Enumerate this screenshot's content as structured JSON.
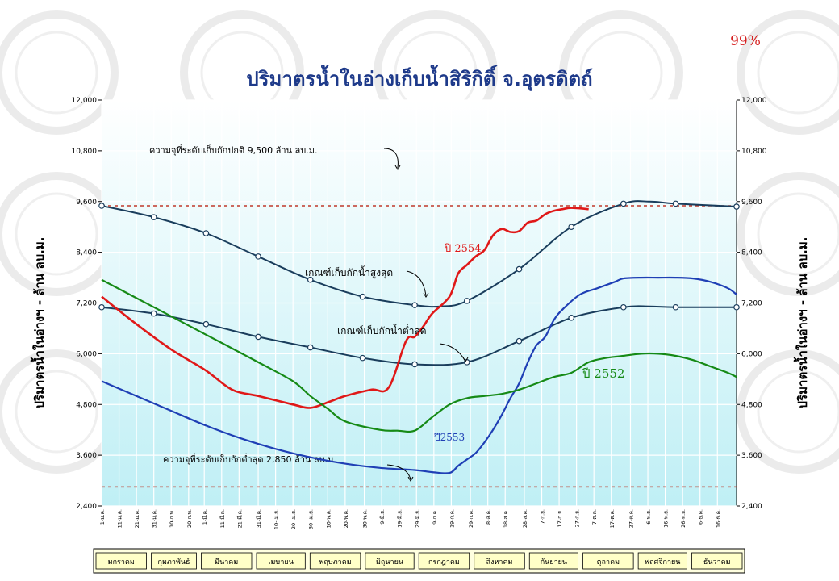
{
  "percent_label": "99%",
  "percent_color": "#d62020",
  "chart_data": {
    "type": "line",
    "title": "ปริมาตรน้ำในอ่างเก็บน้ำสิริกิติ์ จ.อุตรดิตถ์",
    "ylabel_left": "ปริมาตรน้ำในอ่างฯ - ล้าน ลบ.ม.",
    "ylabel_right": "ปริมาตรน้ำในอ่างฯ - ล้าน ลบ.ม.",
    "ylim": [
      2400,
      12000
    ],
    "yticks": [
      2400,
      3600,
      4800,
      6000,
      7200,
      8400,
      9600,
      10800,
      12000
    ],
    "ytick_labels": [
      "2,400",
      "3,600",
      "4,800",
      "6,000",
      "7,200",
      "8,400",
      "9,600",
      "10,800",
      "12,000"
    ],
    "xlim": [
      0,
      365
    ],
    "grid": true,
    "xtick_days": [
      0,
      10,
      20,
      30,
      40,
      50,
      59,
      69,
      79,
      90,
      100,
      110,
      120,
      130,
      140,
      151,
      161,
      171,
      181,
      191,
      201,
      212,
      222,
      232,
      243,
      253,
      263,
      273,
      283,
      293,
      304,
      314,
      324,
      334,
      344,
      354
    ],
    "xtick_labels": [
      "1-ม.ค.",
      "11-ม.ค.",
      "21-ม.ค.",
      "31-ม.ค.",
      "10-ก.พ.",
      "20-ก.พ.",
      "1-มี.ค.",
      "11-มี.ค.",
      "21-มี.ค.",
      "31-มี.ค.",
      "10-เม.ย.",
      "20-เม.ย.",
      "30-เม.ย.",
      "10-พ.ค.",
      "20-พ.ค.",
      "30-พ.ค.",
      "9-มิ.ย.",
      "19-มิ.ย.",
      "29-มิ.ย.",
      "9-ก.ค.",
      "19-ก.ค.",
      "29-ก.ค.",
      "8-ส.ค.",
      "18-ส.ค.",
      "28-ส.ค.",
      "7-ก.ย.",
      "17-ก.ย.",
      "27-ก.ย.",
      "7-ต.ค.",
      "17-ต.ค.",
      "27-ต.ค.",
      "6-พ.ย.",
      "16-พ.ย.",
      "26-พ.ย.",
      "6-ธ.ค.",
      "16-ธ.ค."
    ],
    "months": [
      "มกราคม",
      "กุมภาพันธ์",
      "มีนาคม",
      "เมษายน",
      "พฤษภาคม",
      "มิถุนายน",
      "กรกฎาคม",
      "สิงหาคม",
      "กันยายน",
      "ตุลาคม",
      "พฤศจิกายน",
      "ธันวาคม"
    ],
    "month_start_days": [
      0,
      31,
      59,
      90,
      120,
      151,
      181,
      212,
      243,
      273,
      304,
      334,
      365
    ],
    "ref_lines": [
      {
        "value": 9500,
        "label": "ความจุที่ระดับเก็บกักปกติ 9,500 ล้าน ลบ.ม.",
        "color": "#c0392b"
      },
      {
        "value": 2850,
        "label": "ความจุที่ระดับเก็บกักต่ำสุด 2,850 ล้าน ลบ.ม.",
        "color": "#c0392b"
      }
    ],
    "series": [
      {
        "name": "เกณฑ์เก็บกักน้ำสูงสุด",
        "color": "#1a3d5c",
        "x": [
          0,
          30,
          60,
          90,
          120,
          150,
          180,
          195,
          210,
          240,
          270,
          300,
          315,
          330,
          365
        ],
        "y": [
          9500,
          9230,
          8850,
          8300,
          7750,
          7350,
          7150,
          7120,
          7250,
          8000,
          9000,
          9550,
          9600,
          9550,
          9480
        ],
        "markers": [
          0,
          30,
          60,
          90,
          120,
          150,
          180,
          210,
          240,
          270,
          300,
          330,
          365
        ]
      },
      {
        "name": "เกณฑ์เก็บกักน้ำต่ำสุด",
        "color": "#1a3d5c",
        "x": [
          0,
          30,
          60,
          90,
          120,
          150,
          180,
          210,
          240,
          270,
          300,
          315,
          330,
          365
        ],
        "y": [
          7100,
          6950,
          6700,
          6400,
          6150,
          5900,
          5750,
          5800,
          6300,
          6850,
          7100,
          7120,
          7100,
          7100
        ],
        "markers": [
          0,
          30,
          60,
          90,
          120,
          150,
          180,
          210,
          240,
          270,
          300,
          330,
          365
        ]
      },
      {
        "name": "ปี 2554",
        "color": "#e01818",
        "x": [
          0,
          20,
          40,
          60,
          75,
          90,
          110,
          120,
          130,
          140,
          155,
          165,
          175,
          180,
          185,
          190,
          200,
          205,
          210,
          215,
          220,
          225,
          230,
          235,
          240,
          245,
          250,
          255,
          260,
          265,
          270,
          280
        ],
        "y": [
          7350,
          6700,
          6100,
          5600,
          5150,
          5000,
          4800,
          4720,
          4850,
          5000,
          5150,
          5200,
          6300,
          6400,
          6650,
          6950,
          7350,
          7900,
          8100,
          8300,
          8450,
          8800,
          8950,
          8880,
          8900,
          9100,
          9150,
          9300,
          9380,
          9420,
          9450,
          9420
        ]
      },
      {
        "name": "ปี 2553",
        "color": "#1f3fb5",
        "x": [
          0,
          20,
          40,
          60,
          80,
          100,
          120,
          140,
          160,
          180,
          190,
          200,
          205,
          210,
          215,
          220,
          225,
          230,
          235,
          240,
          245,
          250,
          255,
          260,
          265,
          275,
          285,
          295,
          300,
          310,
          320,
          330,
          340,
          350,
          360,
          365
        ],
        "y": [
          5350,
          5000,
          4650,
          4300,
          4000,
          3750,
          3550,
          3400,
          3300,
          3250,
          3200,
          3180,
          3350,
          3500,
          3650,
          3900,
          4200,
          4550,
          4950,
          5300,
          5800,
          6200,
          6400,
          6800,
          7050,
          7400,
          7550,
          7700,
          7780,
          7800,
          7800,
          7800,
          7780,
          7700,
          7550,
          7400
        ]
      },
      {
        "name": "ปี 2552",
        "color": "#168a16",
        "x": [
          0,
          30,
          60,
          90,
          110,
          120,
          130,
          140,
          160,
          170,
          180,
          190,
          200,
          210,
          220,
          230,
          240,
          250,
          260,
          270,
          280,
          290,
          300,
          310,
          320,
          330,
          340,
          350,
          360,
          365
        ],
        "y": [
          7750,
          7100,
          6450,
          5800,
          5350,
          5000,
          4700,
          4400,
          4200,
          4180,
          4180,
          4500,
          4800,
          4950,
          5000,
          5050,
          5150,
          5300,
          5450,
          5550,
          5800,
          5900,
          5950,
          6000,
          6000,
          5950,
          5850,
          5700,
          5550,
          5450
        ]
      }
    ],
    "annotations": [
      {
        "text": "ปี 2554",
        "color": "#e01818"
      },
      {
        "text": "ปี2553",
        "color": "#1f3fb5"
      },
      {
        "text": "ปี 2552",
        "color": "#168a16"
      },
      {
        "text": "เกณฑ์เก็บกักน้ำสูงสุด",
        "color": "#000000"
      },
      {
        "text": "เกณฑ์เก็บกักน้ำต่ำสุด",
        "color": "#000000"
      }
    ]
  }
}
